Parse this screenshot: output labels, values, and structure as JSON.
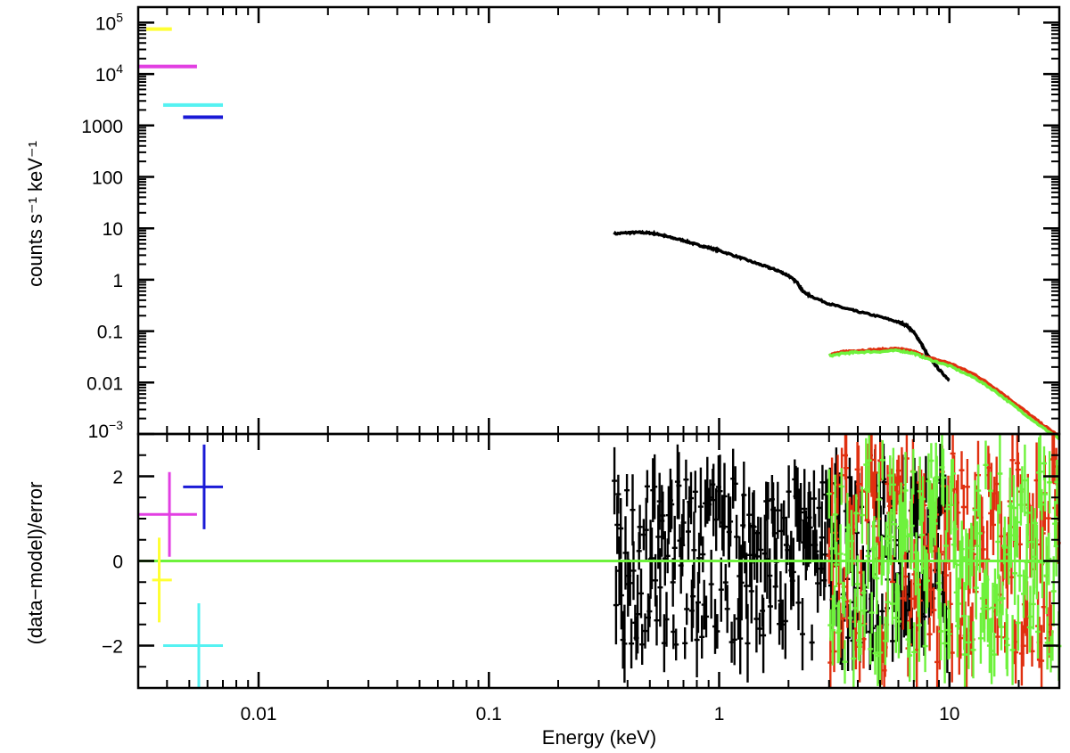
{
  "chart_data": [
    {
      "type": "line",
      "panel": "spectrum",
      "title": "",
      "xlabel": "",
      "ylabel": "counts s⁻¹ keV⁻¹",
      "xscale": "log",
      "yscale": "log",
      "xlim": [
        0.003,
        30
      ],
      "ylim": [
        0.001,
        200000
      ],
      "grid": false,
      "y_tick_labels": [
        {
          "value": 100000,
          "base": "10",
          "exp": "5"
        },
        {
          "value": 10000,
          "base": "10",
          "exp": "4"
        },
        {
          "value": 1000,
          "base": "1000",
          "exp": ""
        },
        {
          "value": 100,
          "base": "100",
          "exp": ""
        },
        {
          "value": 10,
          "base": "10",
          "exp": ""
        },
        {
          "value": 1,
          "base": "1",
          "exp": ""
        },
        {
          "value": 0.1,
          "base": "0.1",
          "exp": ""
        },
        {
          "value": 0.01,
          "base": "0.01",
          "exp": ""
        },
        {
          "value": 0.001,
          "base": "10",
          "exp": "−3"
        }
      ],
      "series": [
        {
          "color": "#ffff33",
          "style": "segment",
          "points": [
            [
              0.00325,
              75000
            ],
            [
              0.0042,
              75000
            ]
          ]
        },
        {
          "color": "#e23fe2",
          "style": "segment",
          "points": [
            [
              0.003,
              14000
            ],
            [
              0.0054,
              14000
            ]
          ]
        },
        {
          "color": "#55f2f2",
          "style": "segment",
          "points": [
            [
              0.00385,
              2500
            ],
            [
              0.007,
              2500
            ]
          ]
        },
        {
          "color": "#1a1ad6",
          "style": "segment",
          "points": [
            [
              0.0047,
              1450
            ],
            [
              0.007,
              1450
            ]
          ]
        },
        {
          "color": "#000000",
          "style": "line",
          "points": [
            [
              0.35,
              7.8
            ],
            [
              0.4,
              8.2
            ],
            [
              0.45,
              8.3
            ],
            [
              0.5,
              8.1
            ],
            [
              0.55,
              7.6
            ],
            [
              0.6,
              6.8
            ],
            [
              0.7,
              5.8
            ],
            [
              0.8,
              4.8
            ],
            [
              0.9,
              4.2
            ],
            [
              1.0,
              3.7
            ],
            [
              1.2,
              2.8
            ],
            [
              1.4,
              2.2
            ],
            [
              1.6,
              1.8
            ],
            [
              1.8,
              1.5
            ],
            [
              2.0,
              1.2
            ],
            [
              2.2,
              0.85
            ],
            [
              2.3,
              0.6
            ],
            [
              2.5,
              0.48
            ],
            [
              3.0,
              0.34
            ],
            [
              3.5,
              0.28
            ],
            [
              4.0,
              0.24
            ],
            [
              5.0,
              0.19
            ],
            [
              6.0,
              0.15
            ],
            [
              6.5,
              0.13
            ],
            [
              7.0,
              0.095
            ],
            [
              7.5,
              0.06
            ],
            [
              8.0,
              0.035
            ],
            [
              9.0,
              0.018
            ],
            [
              10.0,
              0.011
            ]
          ]
        },
        {
          "color": "#e03010",
          "style": "line",
          "points": [
            [
              3.0,
              0.035
            ],
            [
              3.5,
              0.04
            ],
            [
              4.0,
              0.042
            ],
            [
              5.0,
              0.044
            ],
            [
              6.0,
              0.046
            ],
            [
              7.0,
              0.04
            ],
            [
              8.0,
              0.031
            ],
            [
              10.0,
              0.024
            ],
            [
              13.0,
              0.014
            ],
            [
              16.0,
              0.0075
            ],
            [
              20.0,
              0.0035
            ],
            [
              25.0,
              0.0016
            ],
            [
              30.0,
              0.0009
            ]
          ]
        },
        {
          "color": "#6ef23c",
          "style": "line",
          "points": [
            [
              3.0,
              0.033
            ],
            [
              3.5,
              0.037
            ],
            [
              4.0,
              0.039
            ],
            [
              5.0,
              0.04
            ],
            [
              6.0,
              0.042
            ],
            [
              7.0,
              0.037
            ],
            [
              8.0,
              0.029
            ],
            [
              10.0,
              0.021
            ],
            [
              13.0,
              0.012
            ],
            [
              16.0,
              0.0065
            ],
            [
              20.0,
              0.003
            ],
            [
              25.0,
              0.0014
            ],
            [
              30.0,
              0.0008
            ]
          ]
        }
      ]
    },
    {
      "type": "scatter",
      "panel": "residuals",
      "title": "",
      "xlabel": "Energy (keV)",
      "ylabel": "(data−model)/error",
      "xscale": "log",
      "yscale": "linear",
      "xlim": [
        0.003,
        30
      ],
      "ylim": [
        -3,
        3
      ],
      "grid": false,
      "x_tick_labels": [
        "0.01",
        "0.1",
        "1",
        "10"
      ],
      "x_tick_values": [
        0.01,
        0.1,
        1,
        10
      ],
      "y_tick_labels": [
        "−2",
        "0",
        "2"
      ],
      "y_tick_values": [
        -2,
        0,
        2
      ],
      "zero_line": {
        "y": 0,
        "color": "#6ef23c"
      },
      "points": [
        {
          "color": "#ffff33",
          "x": 0.0037,
          "y": -0.45,
          "xerr": [
            0.00345,
            0.0042
          ],
          "yerr": 1.0
        },
        {
          "color": "#e23fe2",
          "x": 0.0041,
          "y": 1.1,
          "xerr": [
            0.003,
            0.0054
          ],
          "yerr": 1.0
        },
        {
          "color": "#1a1ad6",
          "x": 0.0058,
          "y": 1.75,
          "xerr": [
            0.0047,
            0.007
          ],
          "yerr": 1.0
        },
        {
          "color": "#55f2f2",
          "x": 0.0055,
          "y": -2.0,
          "xerr": [
            0.00385,
            0.007
          ],
          "yerr": 1.0
        }
      ],
      "noise_bands": [
        {
          "color": "#000000",
          "xrange": [
            0.35,
            10
          ],
          "amplitude": 2.0
        },
        {
          "color": "#e03010",
          "xrange": [
            3,
            30
          ],
          "amplitude": 2.6
        },
        {
          "color": "#6ef23c",
          "xrange": [
            3,
            30
          ],
          "amplitude": 2.4
        }
      ]
    }
  ]
}
